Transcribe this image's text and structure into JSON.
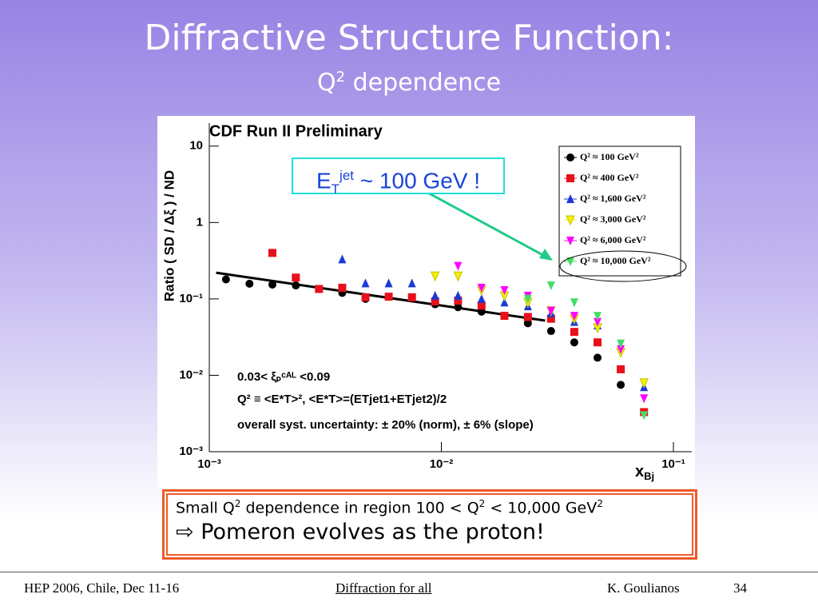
{
  "slide": {
    "title": "Diffractive Structure Function:",
    "subtitle": [
      "Q",
      "2",
      " dependence"
    ]
  },
  "chart_data": {
    "type": "scatter",
    "title": "CDF Run II Preliminary",
    "y_label": "Ratio  ( SD /  Δξ ) / ND",
    "x_label": [
      "x",
      "Bj"
    ],
    "x_log": true,
    "y_log": true,
    "xlim": [
      0.001,
      0.12
    ],
    "ylim": [
      0.001,
      20
    ],
    "xticks": [
      {
        "value": 0.001,
        "label": "10⁻³"
      },
      {
        "value": 0.01,
        "label": "10⁻²"
      },
      {
        "value": 0.1,
        "label": "10⁻¹"
      }
    ],
    "yticks": [
      {
        "value": 0.001,
        "label": "10⁻³"
      },
      {
        "value": 0.01,
        "label": "10⁻²"
      },
      {
        "value": 0.1,
        "label": "10⁻¹"
      },
      1,
      10
    ],
    "legend": "top-right",
    "x": [
      0.00118,
      0.00149,
      0.00187,
      0.00236,
      0.00297,
      0.00374,
      0.00471,
      0.00593,
      0.00747,
      0.0094,
      0.0118,
      0.0149,
      0.0187,
      0.0236,
      0.0297,
      0.0374,
      0.0471,
      0.0593,
      0.0747
    ],
    "series": [
      {
        "name": "Q² ≈   100 GeV²",
        "color": "#000000",
        "marker": "circle",
        "values": [
          0.18,
          0.158,
          0.154,
          0.15,
          null,
          0.12,
          0.1,
          null,
          null,
          0.085,
          0.078,
          0.068,
          0.06,
          0.048,
          0.038,
          0.027,
          0.017,
          0.0075,
          null
        ]
      },
      {
        "name": "Q² ≈   400 GeV²",
        "color": "#e8101a",
        "marker": "square",
        "values": [
          null,
          null,
          0.4,
          0.19,
          0.135,
          0.14,
          0.105,
          0.107,
          0.105,
          0.093,
          0.095,
          0.082,
          0.06,
          0.058,
          0.055,
          0.037,
          0.027,
          0.012,
          0.0033
        ]
      },
      {
        "name": "Q² ≈  1,600 GeV²",
        "color": "#1a3ad8",
        "marker": "triangle-up",
        "values": [
          null,
          null,
          null,
          null,
          null,
          0.33,
          0.16,
          0.16,
          0.16,
          0.11,
          0.11,
          0.1,
          0.09,
          0.08,
          0.065,
          0.05,
          0.045,
          0.024,
          0.007
        ]
      },
      {
        "name": "Q² ≈  3,000 GeV²",
        "color": "#f2f000",
        "marker": "triangle-down",
        "values": [
          null,
          null,
          null,
          null,
          null,
          null,
          null,
          null,
          null,
          0.2,
          0.2,
          0.13,
          0.11,
          0.09,
          0.07,
          0.055,
          0.042,
          0.02,
          0.008
        ]
      },
      {
        "name": "Q² ≈  6,000 GeV²",
        "color": "#ff00ff",
        "marker": "triangle-down",
        "values": [
          null,
          null,
          null,
          null,
          null,
          null,
          null,
          null,
          null,
          null,
          0.27,
          0.14,
          0.13,
          0.11,
          0.07,
          0.06,
          0.05,
          0.022,
          0.005
        ]
      },
      {
        "name": "Q² ≈ 10,000 GeV²",
        "color": "#44dd66",
        "marker": "triangle-down",
        "values": [
          null,
          null,
          null,
          null,
          null,
          null,
          null,
          null,
          null,
          null,
          null,
          null,
          null,
          0.1,
          0.15,
          0.09,
          0.06,
          0.026,
          0.003
        ]
      }
    ],
    "fit": {
      "x": [
        0.00107,
        0.028
      ],
      "y": [
        0.22,
        0.052
      ]
    },
    "annotations": [
      "0.03< ξₚᶜᴬᴸ <0.09",
      "Q² ≡ <E*T>²,   <E*T>=(ETjet1+ETjet2)/2",
      "overall syst. uncertainty: ± 20% (norm), ± 6% (slope)"
    ],
    "callout": {
      "base": "E",
      "sub": "T",
      "sup": "jet",
      "rest": " ~ 100 GeV !"
    }
  },
  "conclusion": {
    "line1": [
      "Small Q",
      "2",
      " dependence in region 100 < Q",
      "2",
      " < 10,000 GeV",
      "2"
    ],
    "arrow": "⇨",
    "line2": " Pomeron evolves as the proton!"
  },
  "footer": {
    "left": "HEP 2006, Chile, Dec 11-16",
    "center": "Diffraction for all",
    "right": "K. Goulianos",
    "page": "34"
  }
}
